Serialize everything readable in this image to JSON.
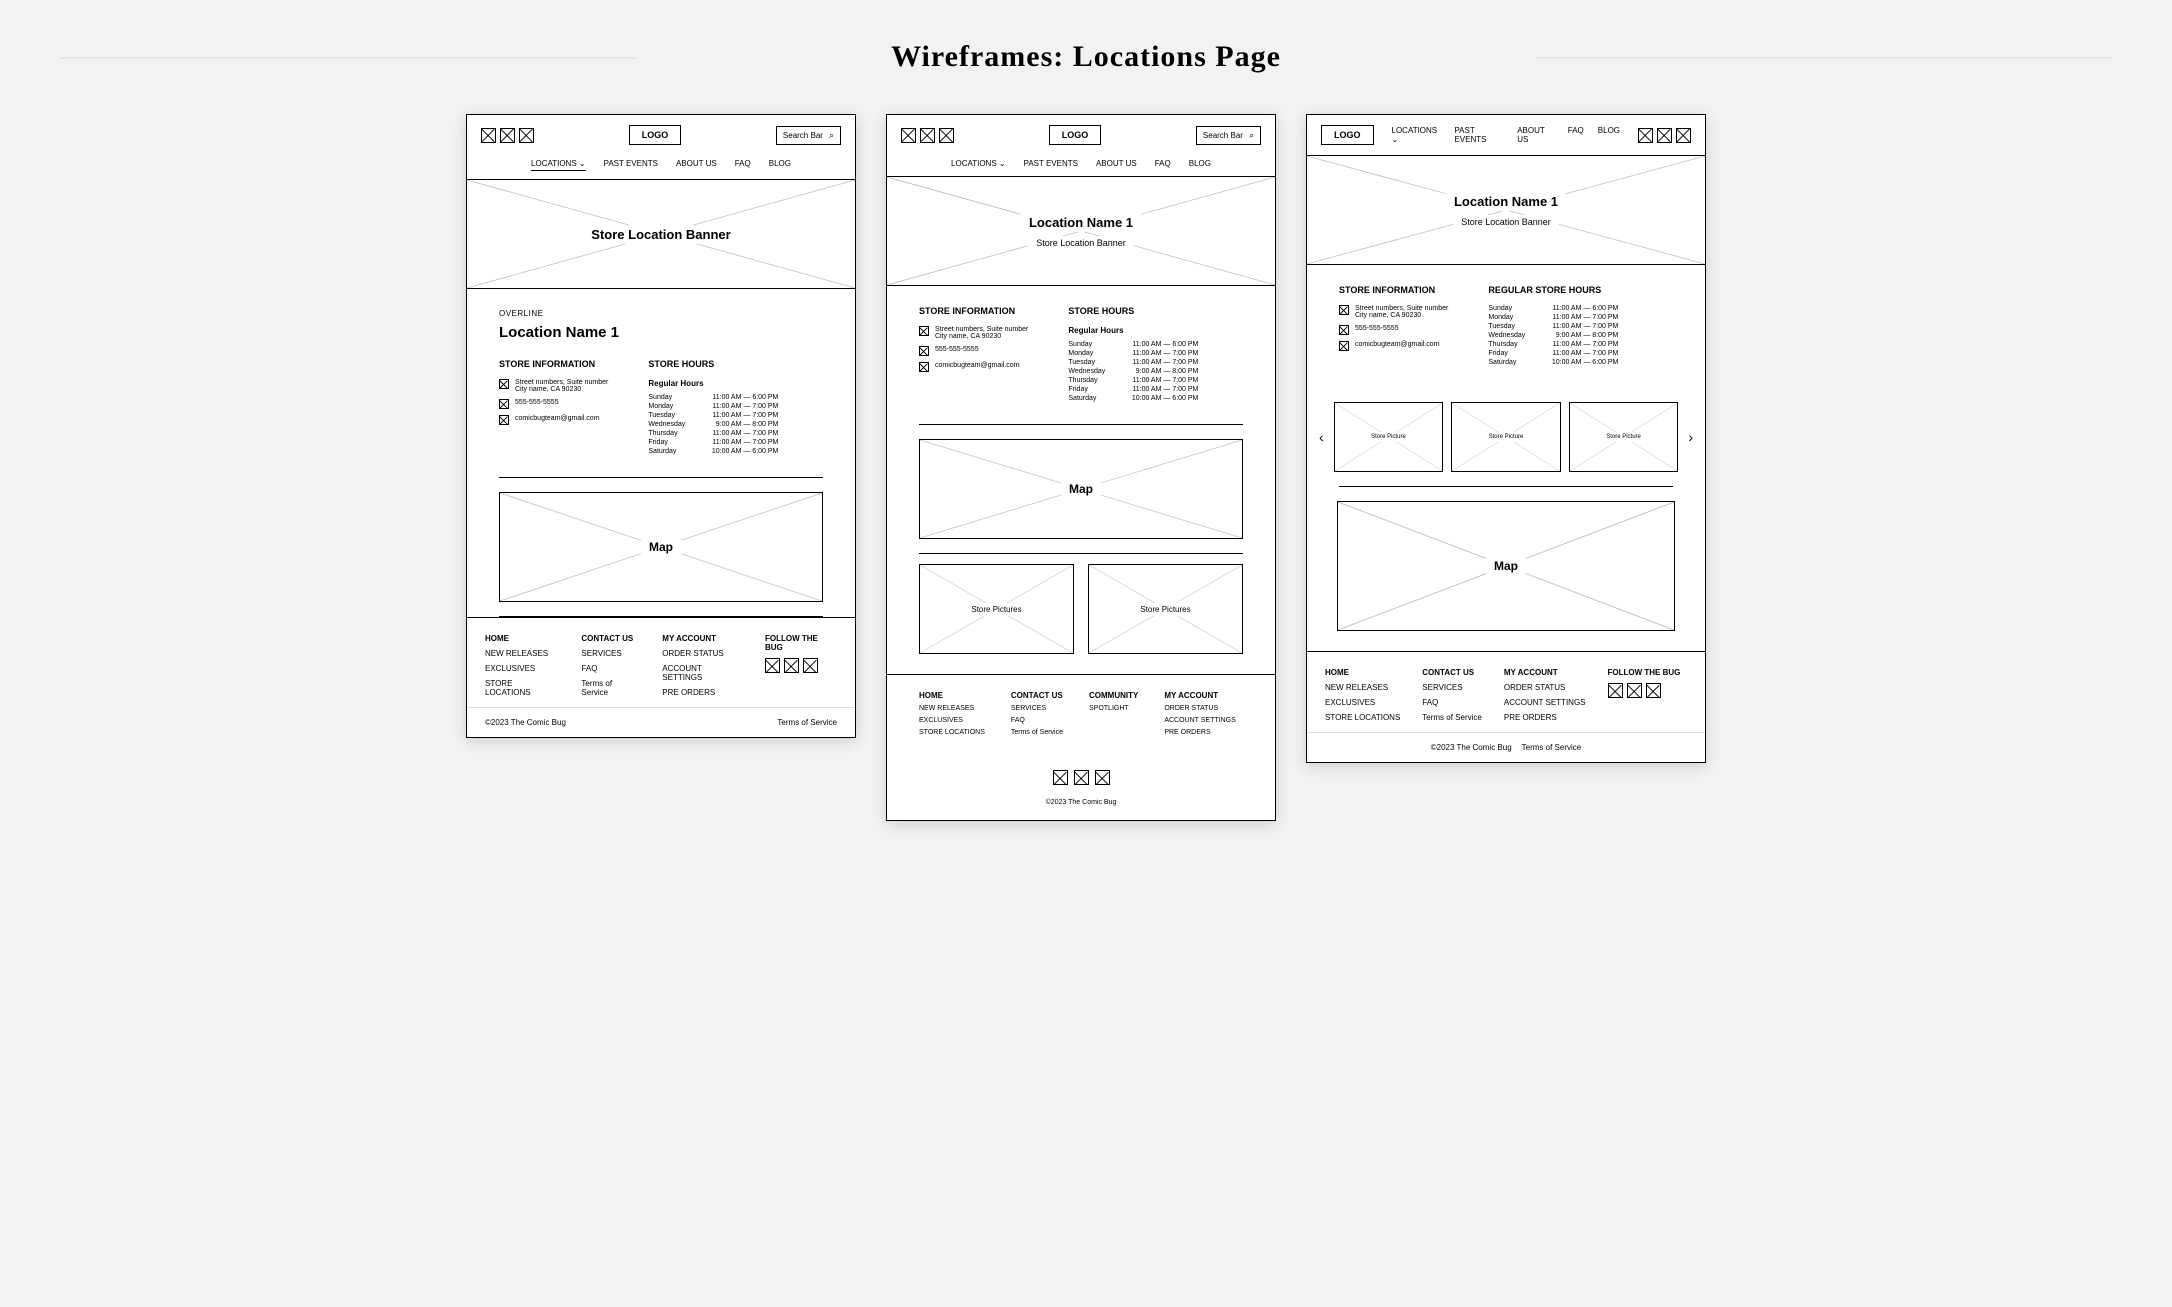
{
  "page_title": "Wireframes: Locations Page",
  "logo": "LOGO",
  "search_label": "Search Bar",
  "nav": {
    "locations": "LOCATIONS ⌄",
    "past_events": "PAST EVENTS",
    "about_us": "ABOUT US",
    "faq": "FAQ",
    "blog": "BLOG"
  },
  "banner": {
    "heading_a": "Store Location Banner",
    "heading_bc": "Location Name 1",
    "sub": "Store Location Banner"
  },
  "overline": "OVERLINE",
  "location_name": "Location Name 1",
  "info": {
    "heading": "STORE INFORMATION",
    "address1": "Street numbers, Suite number",
    "address2": "City name, CA 90230",
    "phone": "555-555-5555",
    "email": "comicbugteam@gmail.com"
  },
  "hours": {
    "heading": "STORE HOURS",
    "heading_c": "REGULAR STORE HOURS",
    "sub": "Regular Hours",
    "rows": [
      {
        "d": "Sunday",
        "t": "11:00 AM — 6:00 PM"
      },
      {
        "d": "Monday",
        "t": "11:00 AM — 7:00 PM"
      },
      {
        "d": "Tuesday",
        "t": "11:00 AM — 7:00 PM"
      },
      {
        "d": "Wednesday",
        "t": "9:00 AM — 8:00 PM"
      },
      {
        "d": "Thursday",
        "t": "11:00 AM — 7:00 PM"
      },
      {
        "d": "Friday",
        "t": "11:00 AM — 7:00 PM"
      },
      {
        "d": "Saturday",
        "t": "10:00 AM — 6:00 PM"
      }
    ]
  },
  "map_label": "Map",
  "pic_label": "Store Pictures",
  "pic_label_c": "Store Picture",
  "footer": {
    "c1": {
      "h": "HOME",
      "items": [
        "NEW RELEASES",
        "EXCLUSIVES",
        "STORE LOCATIONS"
      ]
    },
    "c2": {
      "h": "CONTACT US",
      "items": [
        "SERVICES",
        "FAQ",
        "Terms of Service"
      ]
    },
    "c3": {
      "h": "MY ACCOUNT",
      "items": [
        "ORDER STATUS",
        "ACCOUNT SETTINGS",
        "PRE ORDERS"
      ]
    },
    "c4": {
      "h": "FOLLOW THE BUG"
    },
    "community": {
      "h": "COMMUNITY",
      "items": [
        "SPOTLIGHT"
      ]
    },
    "copy": "©2023 The Comic Bug",
    "tos": "Terms of Service"
  }
}
